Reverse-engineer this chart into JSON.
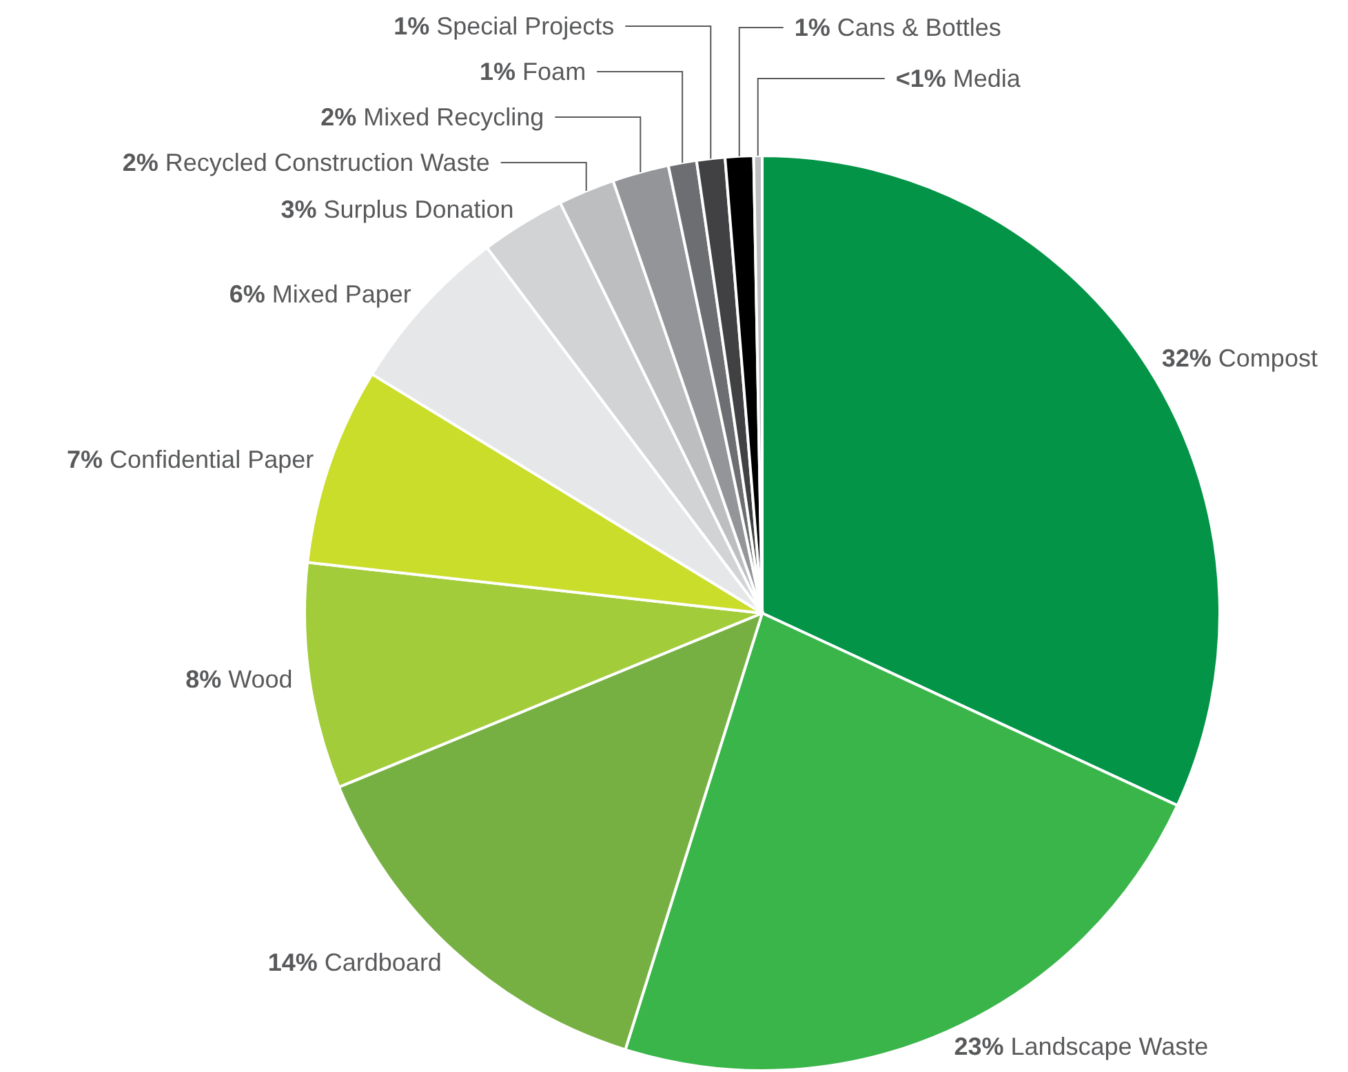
{
  "chart_data": {
    "type": "pie",
    "categories": [
      "Compost",
      "Landscape Waste",
      "Cardboard",
      "Wood",
      "Confidential Paper",
      "Mixed Paper",
      "Surplus Donation",
      "Recycled Construction Waste",
      "Mixed Recycling",
      "Foam",
      "Special Projects",
      "Cans & Bottles",
      "Media"
    ],
    "values": [
      32,
      23,
      14,
      8,
      7,
      6,
      3,
      2,
      2,
      1,
      1,
      1,
      0.3
    ],
    "value_labels": [
      "32%",
      "23%",
      "14%",
      "8%",
      "7%",
      "6%",
      "3%",
      "2%",
      "2%",
      "1%",
      "1%",
      "1%",
      "<1%"
    ],
    "colors": [
      "#039447",
      "#3ab54a",
      "#76b043",
      "#a2cc3a",
      "#cadd2a",
      "#e6e7e8",
      "#d1d3d4",
      "#bcbec0",
      "#939598",
      "#6d6e71",
      "#414042",
      "#000000",
      "#bcbec0"
    ]
  }
}
